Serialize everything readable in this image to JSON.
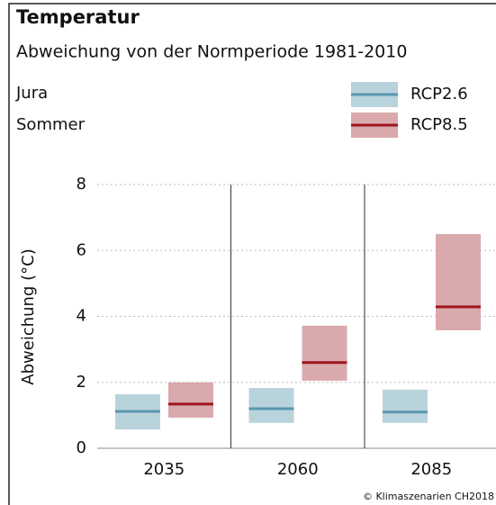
{
  "chart_data": {
    "type": "range",
    "title": "Temperatur",
    "subtitle": "Abweichung von der Normperiode 1981-2010",
    "annotations": [
      "Jura",
      "Sommer"
    ],
    "ylabel": "Abweichung (°C)",
    "source": "© Klimaszenarien CH2018",
    "categories": [
      "2035",
      "2060",
      "2085"
    ],
    "series": [
      {
        "name": "RCP2.6",
        "color": "#5b97b0",
        "fill": "#b9d3dc",
        "low": [
          0.57,
          0.77,
          0.77
        ],
        "median": [
          1.12,
          1.2,
          1.1
        ],
        "high": [
          1.64,
          1.83,
          1.78
        ]
      },
      {
        "name": "RCP8.5",
        "color": "#a0151e",
        "fill": "#d9a9ac",
        "low": [
          0.93,
          2.05,
          3.58
        ],
        "median": [
          1.34,
          2.6,
          4.29
        ],
        "high": [
          2.0,
          3.72,
          6.5
        ]
      }
    ],
    "ylim": [
      0,
      8
    ],
    "yticks": [
      0,
      2,
      4,
      6,
      8
    ],
    "grid": true
  }
}
